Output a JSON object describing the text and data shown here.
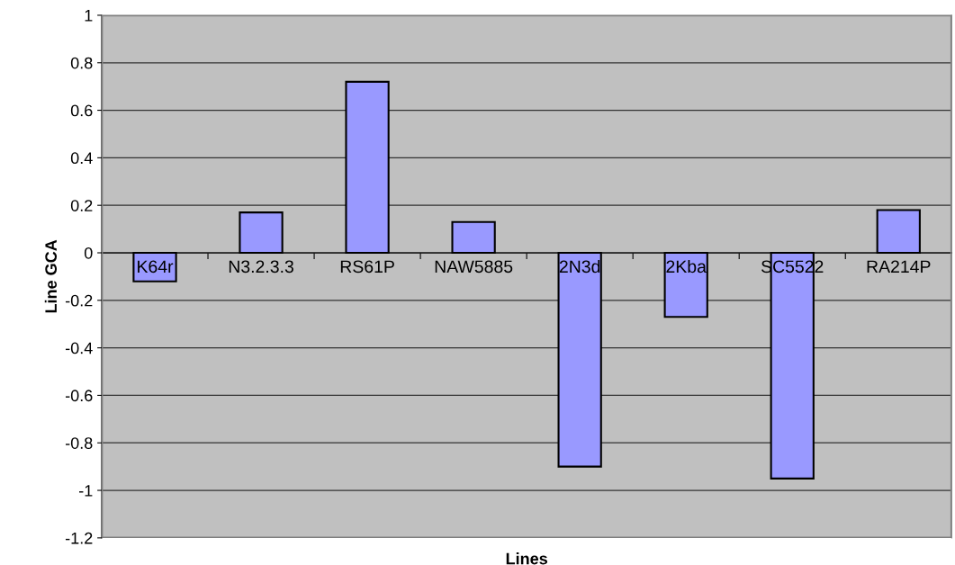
{
  "chart_data": {
    "type": "bar",
    "xlabel": "Lines",
    "ylabel": "Line GCA",
    "categories": [
      "K64r",
      "N3.2.3.3",
      "RS61P",
      "NAW5885",
      "2N3d",
      "2Kba",
      "SC5522",
      "RA214P"
    ],
    "values": [
      -0.12,
      0.17,
      0.72,
      0.13,
      -0.9,
      -0.27,
      -0.95,
      0.18
    ],
    "color": "#9999ff",
    "ylim": [
      -1.2,
      1
    ],
    "yticks": [
      -1.2,
      -1,
      -0.8,
      -0.6,
      -0.4,
      -0.2,
      0,
      0.2,
      0.4,
      0.6,
      0.8,
      1
    ],
    "grid": "y",
    "legend": false
  }
}
